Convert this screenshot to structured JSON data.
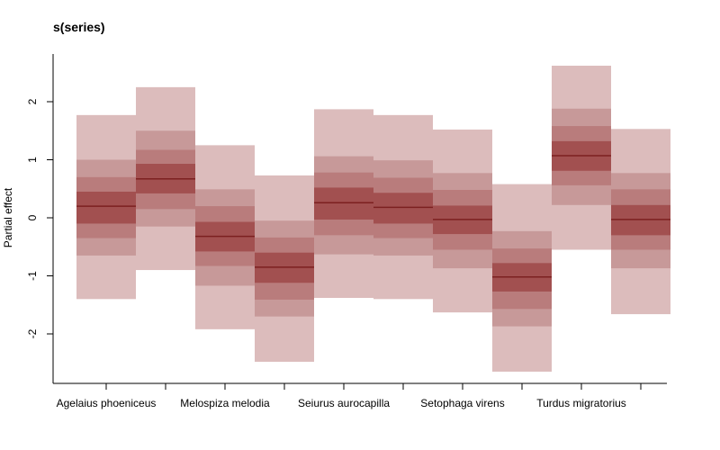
{
  "chart_data": {
    "type": "box",
    "title": "s(series)",
    "xlabel": "",
    "ylabel": "Partial effect",
    "ylim": [
      -2.85,
      2.85
    ],
    "yticks": [
      -2,
      -1,
      0,
      1,
      2
    ],
    "xtick_labels": [
      "Agelaius phoeniceus",
      "Melospiza melodia",
      "Seiurus aurocapilla",
      "Setophaga virens",
      "Turdus migratorius"
    ],
    "grid": false,
    "colors": {
      "outer": "#dcbcbc",
      "mid_outer": "#c79999",
      "mid": "#b97c7c",
      "inner": "#a25050",
      "median": "#7c2020"
    },
    "series": [
      {
        "name": "Agelaius phoeniceus",
        "quantiles": [
          -1.4,
          -0.65,
          -0.35,
          -0.1,
          0.2,
          0.45,
          0.7,
          1.0,
          1.77
        ]
      },
      {
        "name": "Agelaius phoeniceus",
        "quantiles": [
          -0.9,
          -0.15,
          0.15,
          0.42,
          0.67,
          0.93,
          1.17,
          1.5,
          2.25
        ]
      },
      {
        "name": "Melospiza melodia",
        "quantiles": [
          -1.92,
          -1.17,
          -0.83,
          -0.58,
          -0.32,
          -0.07,
          0.2,
          0.49,
          1.25
        ]
      },
      {
        "name": "Melospiza melodia",
        "quantiles": [
          -2.48,
          -1.7,
          -1.41,
          -1.12,
          -0.85,
          -0.6,
          -0.34,
          -0.05,
          0.73
        ]
      },
      {
        "name": "Seiurus aurocapilla",
        "quantiles": [
          -1.38,
          -0.63,
          -0.3,
          -0.03,
          0.26,
          0.52,
          0.78,
          1.06,
          1.87
        ]
      },
      {
        "name": "Seiurus aurocapilla",
        "quantiles": [
          -1.4,
          -0.65,
          -0.35,
          -0.1,
          0.18,
          0.43,
          0.69,
          0.99,
          1.77
        ]
      },
      {
        "name": "Setophaga virens",
        "quantiles": [
          -1.63,
          -0.87,
          -0.55,
          -0.28,
          -0.03,
          0.21,
          0.48,
          0.77,
          1.52
        ]
      },
      {
        "name": "Setophaga virens",
        "quantiles": [
          -2.65,
          -1.87,
          -1.57,
          -1.27,
          -1.02,
          -0.78,
          -0.53,
          -0.23,
          0.58
        ]
      },
      {
        "name": "Turdus migratorius",
        "quantiles": [
          -0.55,
          0.22,
          0.56,
          0.81,
          1.07,
          1.32,
          1.58,
          1.88,
          2.62
        ]
      },
      {
        "name": "Turdus migratorius",
        "quantiles": [
          -1.66,
          -0.87,
          -0.55,
          -0.3,
          -0.03,
          0.22,
          0.49,
          0.77,
          1.53
        ]
      }
    ]
  }
}
